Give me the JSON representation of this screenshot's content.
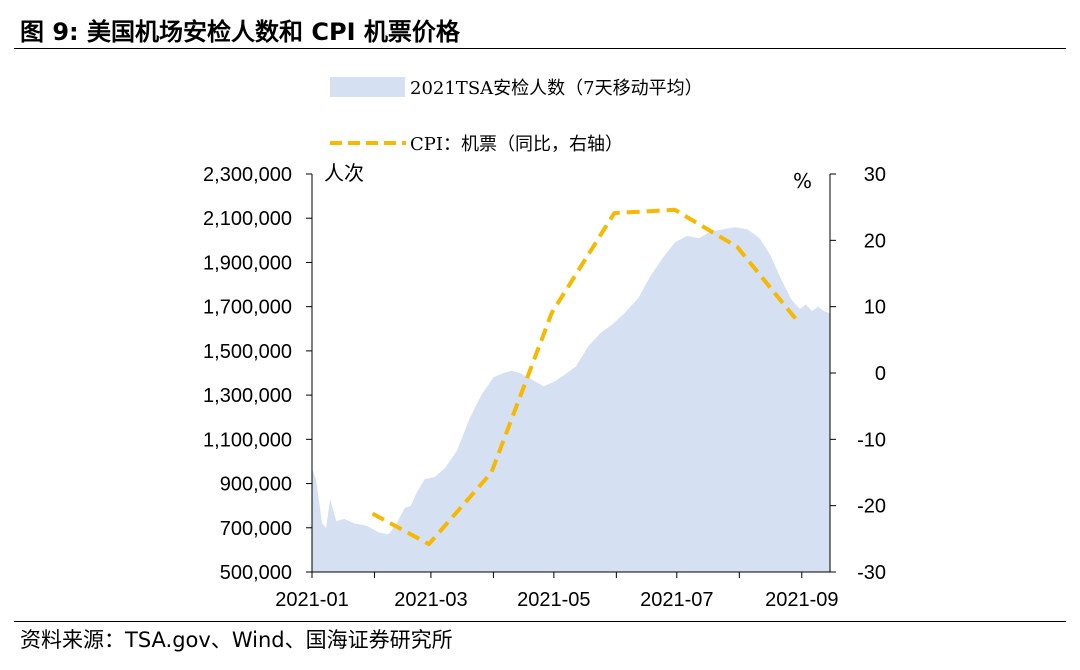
{
  "header": {
    "figure_label": "图 9:",
    "title": "美国机场安检人数和 CPI 机票价格"
  },
  "footer": {
    "source": "资料来源：TSA.gov、Wind、国海证券研究所"
  },
  "colors": {
    "area_fill": "#d5e1f3",
    "cpi_line": "#f6b800",
    "axis": "#000000"
  },
  "chart_data": {
    "type": "area",
    "left_unit": "人次",
    "right_unit": "%",
    "x_ticks": [
      "2021-01",
      "2021-03",
      "2021-05",
      "2021-07",
      "2021-09"
    ],
    "y_left_ticks": [
      "2,300,000",
      "2,100,000",
      "1,900,000",
      "1,700,000",
      "1,500,000",
      "1,300,000",
      "1,100,000",
      "900,000",
      "700,000",
      "500,000"
    ],
    "y_right_ticks": [
      "30",
      "20",
      "10",
      "0",
      "-10",
      "-20",
      "-30"
    ],
    "y_left_range": [
      500000,
      2300000
    ],
    "y_right_range": [
      -30,
      30
    ],
    "x_range": [
      "2021-01-01",
      "2021-09-15"
    ],
    "series": [
      {
        "name": "2021TSA安检人数（7天移动平均）",
        "type": "area",
        "axis": "left",
        "points": [
          [
            "2021-01-01",
            970000
          ],
          [
            "2021-01-03",
            920000
          ],
          [
            "2021-01-06",
            720000
          ],
          [
            "2021-01-08",
            700000
          ],
          [
            "2021-01-10",
            830000
          ],
          [
            "2021-01-13",
            730000
          ],
          [
            "2021-01-17",
            740000
          ],
          [
            "2021-01-22",
            720000
          ],
          [
            "2021-01-28",
            710000
          ],
          [
            "2021-02-03",
            680000
          ],
          [
            "2021-02-08",
            670000
          ],
          [
            "2021-02-12",
            720000
          ],
          [
            "2021-02-16",
            790000
          ],
          [
            "2021-02-19",
            800000
          ],
          [
            "2021-02-22",
            860000
          ],
          [
            "2021-02-26",
            920000
          ],
          [
            "2021-03-03",
            930000
          ],
          [
            "2021-03-08",
            970000
          ],
          [
            "2021-03-14",
            1050000
          ],
          [
            "2021-03-20",
            1190000
          ],
          [
            "2021-03-26",
            1300000
          ],
          [
            "2021-04-01",
            1380000
          ],
          [
            "2021-04-06",
            1400000
          ],
          [
            "2021-04-10",
            1410000
          ],
          [
            "2021-04-14",
            1400000
          ],
          [
            "2021-04-18",
            1380000
          ],
          [
            "2021-04-22",
            1360000
          ],
          [
            "2021-04-26",
            1340000
          ],
          [
            "2021-05-01",
            1360000
          ],
          [
            "2021-05-06",
            1390000
          ],
          [
            "2021-05-12",
            1430000
          ],
          [
            "2021-05-18",
            1520000
          ],
          [
            "2021-05-24",
            1580000
          ],
          [
            "2021-05-30",
            1620000
          ],
          [
            "2021-06-05",
            1670000
          ],
          [
            "2021-06-12",
            1740000
          ],
          [
            "2021-06-18",
            1840000
          ],
          [
            "2021-06-24",
            1920000
          ],
          [
            "2021-06-30",
            1990000
          ],
          [
            "2021-07-06",
            2020000
          ],
          [
            "2021-07-12",
            2010000
          ],
          [
            "2021-07-18",
            2040000
          ],
          [
            "2021-07-24",
            2050000
          ],
          [
            "2021-07-30",
            2060000
          ],
          [
            "2021-08-05",
            2050000
          ],
          [
            "2021-08-11",
            2010000
          ],
          [
            "2021-08-16",
            1940000
          ],
          [
            "2021-08-22",
            1820000
          ],
          [
            "2021-08-27",
            1730000
          ],
          [
            "2021-08-31",
            1690000
          ],
          [
            "2021-09-03",
            1710000
          ],
          [
            "2021-09-06",
            1680000
          ],
          [
            "2021-09-09",
            1700000
          ],
          [
            "2021-09-12",
            1680000
          ],
          [
            "2021-09-15",
            1670000
          ]
        ]
      },
      {
        "name": "CPI：机票（同比，右轴）",
        "type": "line",
        "axis": "right",
        "dashed": true,
        "points": [
          [
            "2021-01-31",
            -21.2
          ],
          [
            "2021-02-28",
            -25.8
          ],
          [
            "2021-03-31",
            -15.0
          ],
          [
            "2021-04-30",
            9.1
          ],
          [
            "2021-05-31",
            24.1
          ],
          [
            "2021-06-30",
            24.6
          ],
          [
            "2021-07-31",
            19.0
          ],
          [
            "2021-08-31",
            7.4
          ]
        ]
      }
    ]
  }
}
